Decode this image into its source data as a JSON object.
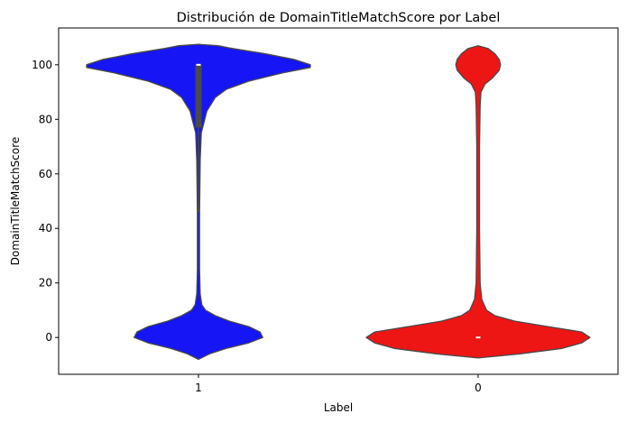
{
  "chart_data": {
    "type": "violin",
    "title": "Distribución de DomainTitleMatchScore por Label",
    "xlabel": "Label",
    "ylabel": "DomainTitleMatchScore",
    "categories": [
      "1",
      "0"
    ],
    "ylim": [
      -13.5,
      113.5
    ],
    "yticks": [
      0,
      20,
      40,
      60,
      80,
      100
    ],
    "grid": false,
    "colors": {
      "1": "#1515f5",
      "0": "#ee1515",
      "outline": "#4a4a4a",
      "median": "#ffffff"
    },
    "series": [
      {
        "category": "1",
        "max_half_width": 0.4,
        "density": [
          [
            -8,
            0.0
          ],
          [
            -6,
            0.04
          ],
          [
            -4,
            0.1
          ],
          [
            -2,
            0.18
          ],
          [
            0,
            0.23
          ],
          [
            2,
            0.22
          ],
          [
            4,
            0.18
          ],
          [
            6,
            0.11
          ],
          [
            8,
            0.06
          ],
          [
            10,
            0.025
          ],
          [
            12,
            0.012
          ],
          [
            16,
            0.006
          ],
          [
            25,
            0.004
          ],
          [
            45,
            0.004
          ],
          [
            65,
            0.006
          ],
          [
            75,
            0.01
          ],
          [
            83,
            0.03
          ],
          [
            88,
            0.06
          ],
          [
            91,
            0.1
          ],
          [
            94,
            0.18
          ],
          [
            97,
            0.3
          ],
          [
            99,
            0.4
          ],
          [
            100,
            0.4
          ],
          [
            102,
            0.34
          ],
          [
            104,
            0.24
          ],
          [
            106,
            0.12
          ],
          [
            107,
            0.07
          ],
          [
            107.5,
            0.0
          ]
        ],
        "box": {
          "q1": 77,
          "median": 100,
          "q3": 100
        },
        "whisker": [
          46,
          100
        ]
      },
      {
        "category": "0",
        "max_half_width": 0.4,
        "density": [
          [
            -7.5,
            0.0
          ],
          [
            -6,
            0.15
          ],
          [
            -4,
            0.3
          ],
          [
            -2,
            0.37
          ],
          [
            0,
            0.4
          ],
          [
            2,
            0.37
          ],
          [
            4,
            0.25
          ],
          [
            6,
            0.13
          ],
          [
            8,
            0.06
          ],
          [
            10,
            0.03
          ],
          [
            14,
            0.013
          ],
          [
            20,
            0.007
          ],
          [
            40,
            0.005
          ],
          [
            70,
            0.005
          ],
          [
            85,
            0.007
          ],
          [
            90,
            0.01
          ],
          [
            93,
            0.025
          ],
          [
            95,
            0.05
          ],
          [
            98,
            0.075
          ],
          [
            100,
            0.08
          ],
          [
            102,
            0.075
          ],
          [
            104,
            0.06
          ],
          [
            106,
            0.035
          ],
          [
            107,
            0.0
          ]
        ],
        "box": {
          "q1": 0,
          "median": 0,
          "q3": 0
        },
        "whisker": [
          0,
          0
        ]
      }
    ]
  }
}
